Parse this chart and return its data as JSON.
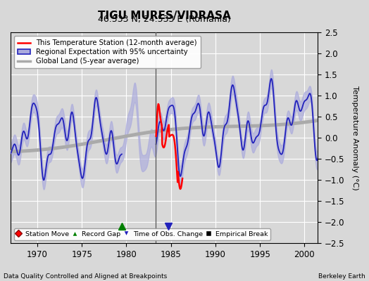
{
  "title": "TIGU MURES/VIDRASA",
  "subtitle": "46.533 N, 24.533 E (Romania)",
  "ylabel": "Temperature Anomaly (°C)",
  "xlabel_left": "Data Quality Controlled and Aligned at Breakpoints",
  "xlabel_right": "Berkeley Earth",
  "ylim": [
    -2.5,
    2.5
  ],
  "xlim": [
    1967.0,
    2001.5
  ],
  "xticks": [
    1970,
    1975,
    1980,
    1985,
    1990,
    1995,
    2000
  ],
  "yticks": [
    -2.5,
    -2,
    -1.5,
    -1,
    -0.5,
    0,
    0.5,
    1,
    1.5,
    2,
    2.5
  ],
  "bg_color": "#d8d8d8",
  "plot_bg_color": "#d8d8d8",
  "grid_color": "white",
  "vertical_line_x": 1983.3,
  "record_gap_x": 1979.5,
  "obs_change_x": 1984.75,
  "regional_color": "#2222bb",
  "regional_fill_color": "#aaaadd",
  "station_color": "red",
  "global_land_color": "#aaaaaa",
  "global_land_lw": 3.5,
  "legend_items": [
    "This Temperature Station (12-month average)",
    "Regional Expectation with 95% uncertainty",
    "Global Land (5-year average)"
  ],
  "marker_legend": [
    "Station Move",
    "Record Gap",
    "Time of Obs. Change",
    "Empirical Break"
  ]
}
